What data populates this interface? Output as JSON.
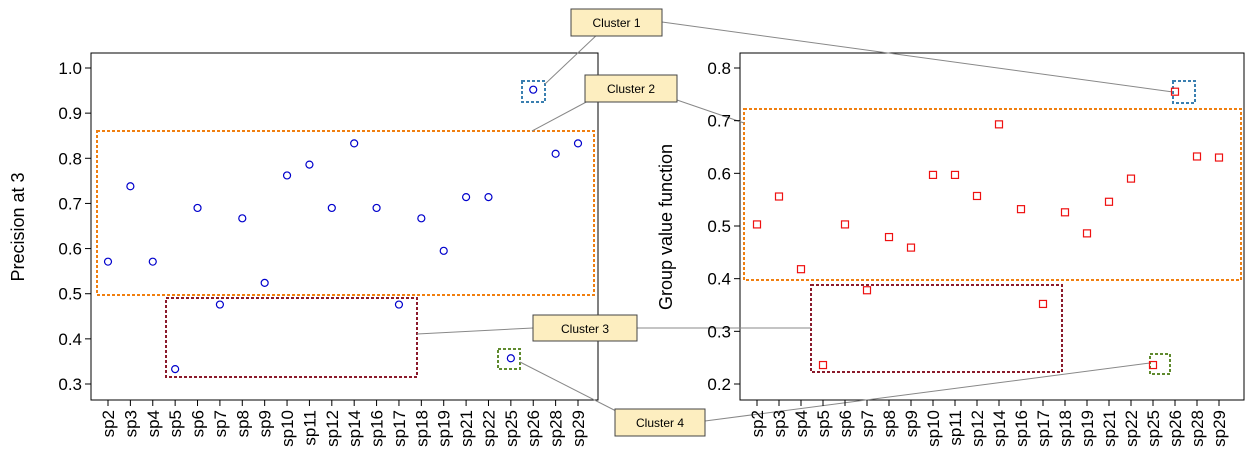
{
  "chart_data": [
    {
      "type": "scatter",
      "ylabel": "Precision at 3",
      "ylim": [
        0.3,
        1.0
      ],
      "yticks": [
        "0.3",
        "0.4",
        "0.5",
        "0.6",
        "0.7",
        "0.8",
        "0.9",
        "1.0"
      ],
      "categories": [
        "sp2",
        "sp3",
        "sp4",
        "sp5",
        "sp6",
        "sp7",
        "sp8",
        "sp9",
        "sp10",
        "sp11",
        "sp12",
        "sp14",
        "sp16",
        "sp17",
        "sp18",
        "sp19",
        "sp21",
        "sp22",
        "sp25",
        "sp26",
        "sp28",
        "sp29"
      ],
      "values": [
        0.571,
        0.738,
        0.571,
        0.333,
        0.69,
        0.476,
        0.667,
        0.524,
        0.762,
        0.786,
        0.69,
        0.833,
        0.69,
        0.476,
        0.667,
        0.595,
        0.714,
        0.714,
        0.357,
        0.952,
        0.81,
        0.833
      ],
      "marker": "circle",
      "color": "#0000cc"
    },
    {
      "type": "scatter",
      "ylabel": "Group value function",
      "ylim": [
        0.2,
        0.8
      ],
      "yticks": [
        "0.2",
        "0.3",
        "0.4",
        "0.5",
        "0.6",
        "0.7",
        "0.8"
      ],
      "categories": [
        "sp2",
        "sp3",
        "sp4",
        "sp5",
        "sp6",
        "sp7",
        "sp8",
        "sp9",
        "sp10",
        "sp11",
        "sp12",
        "sp14",
        "sp16",
        "sp17",
        "sp18",
        "sp19",
        "sp21",
        "sp22",
        "sp25",
        "sp26",
        "sp28",
        "sp29"
      ],
      "values": [
        0.503,
        0.556,
        0.418,
        0.236,
        0.503,
        0.378,
        0.479,
        0.459,
        0.597,
        0.597,
        0.557,
        0.693,
        0.532,
        0.352,
        0.526,
        0.486,
        0.546,
        0.59,
        0.236,
        0.755,
        0.632,
        0.63
      ],
      "marker": "square",
      "color": "#ee1111"
    }
  ],
  "clusters": [
    {
      "label": "Cluster 1",
      "color": "#3a7fb0"
    },
    {
      "label": "Cluster 2",
      "color": "#f07f10"
    },
    {
      "label": "Cluster 3",
      "color": "#8b1a2b"
    },
    {
      "label": "Cluster 4",
      "color": "#5f8a2e"
    }
  ]
}
